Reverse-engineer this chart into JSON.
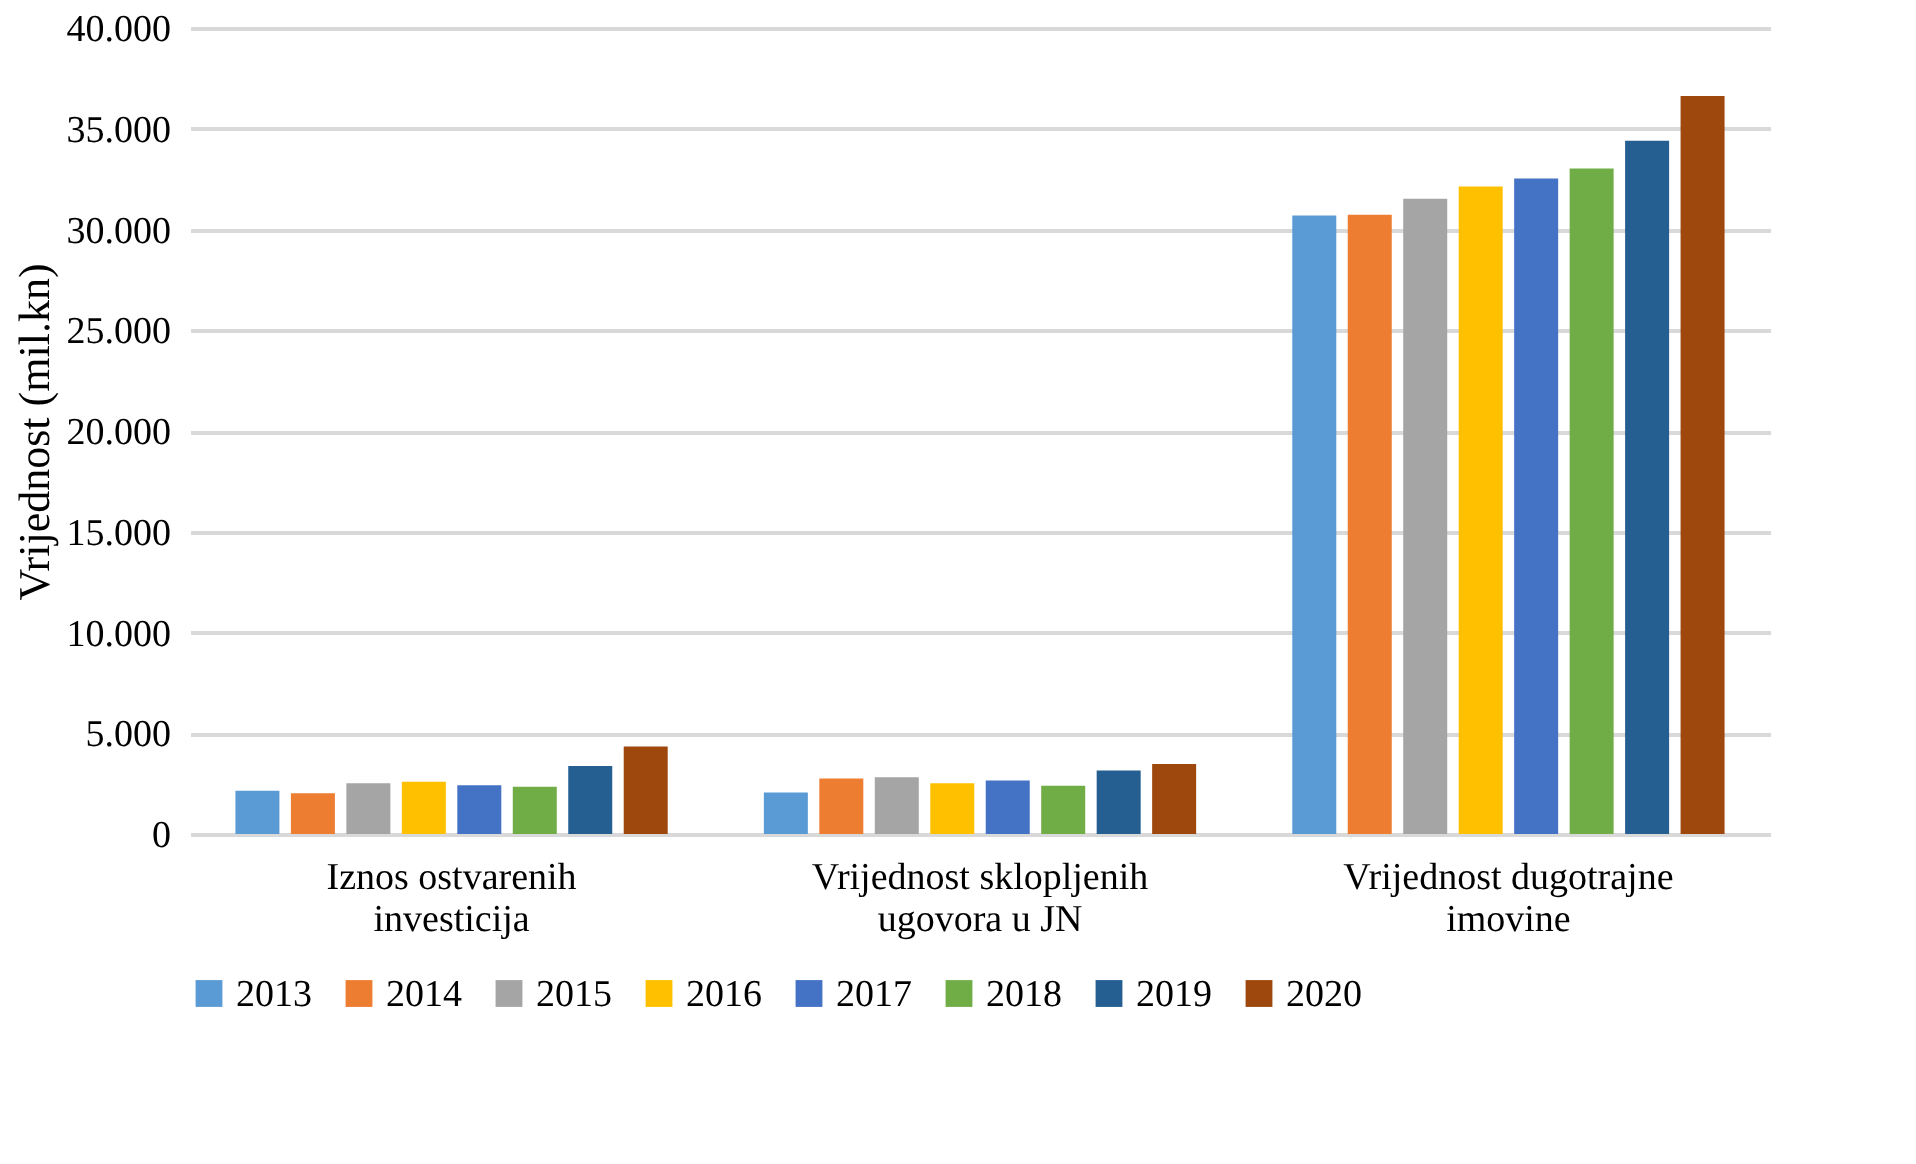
{
  "chart_data": {
    "type": "bar",
    "ylabel": "Vrijednost (mil.kn)",
    "categories": [
      "Iznos ostvarenih investicija",
      "Vrijednost sklopljenih ugovora u JN",
      "Vrijednost dugotrajne imovine"
    ],
    "series": [
      {
        "name": "2013",
        "color": "#5b9bd5",
        "values": [
          2150,
          2060,
          30700
        ]
      },
      {
        "name": "2014",
        "color": "#ed7d31",
        "values": [
          2020,
          2750,
          30730
        ]
      },
      {
        "name": "2015",
        "color": "#a5a5a5",
        "values": [
          2520,
          2820,
          31530
        ]
      },
      {
        "name": "2016",
        "color": "#ffc000",
        "values": [
          2590,
          2520,
          32130
        ]
      },
      {
        "name": "2017",
        "color": "#4472c4",
        "values": [
          2420,
          2650,
          32530
        ]
      },
      {
        "name": "2018",
        "color": "#70ad47",
        "values": [
          2350,
          2390,
          33030
        ]
      },
      {
        "name": "2019",
        "color": "#255e91",
        "values": [
          3380,
          3150,
          34400
        ]
      },
      {
        "name": "2020",
        "color": "#9e480e",
        "values": [
          4340,
          3480,
          36630
        ]
      }
    ],
    "ylim": [
      0,
      40000
    ],
    "yticks": [
      {
        "value": 0,
        "label": "0"
      },
      {
        "value": 5000,
        "label": "5.000"
      },
      {
        "value": 10000,
        "label": "10.000"
      },
      {
        "value": 15000,
        "label": "15.000"
      },
      {
        "value": 20000,
        "label": "20.000"
      },
      {
        "value": 25000,
        "label": "25.000"
      },
      {
        "value": 30000,
        "label": "30.000"
      },
      {
        "value": 35000,
        "label": "35.000"
      },
      {
        "value": 40000,
        "label": "40.000"
      }
    ],
    "grid": "y",
    "legend": "bottom"
  }
}
